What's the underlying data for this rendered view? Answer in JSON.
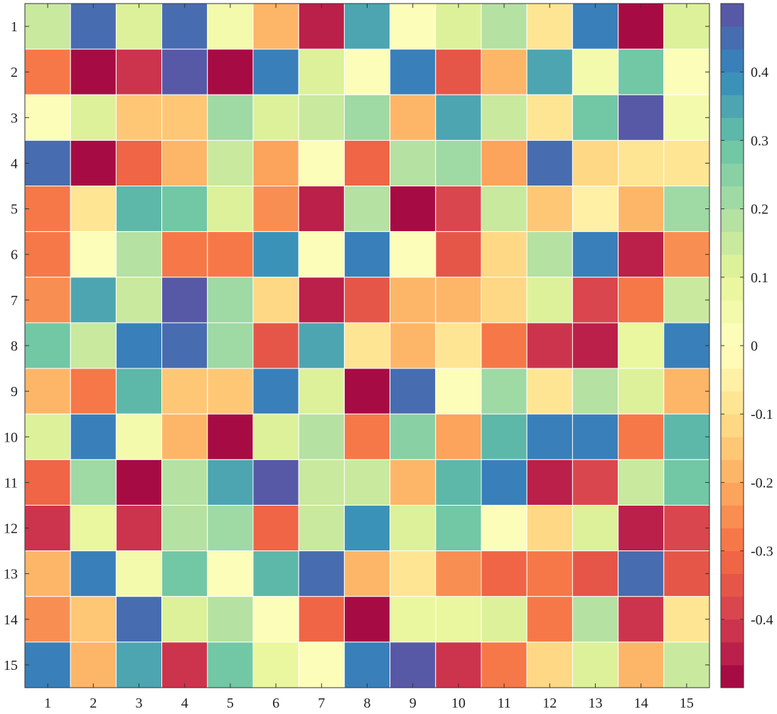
{
  "chart_data": {
    "type": "heatmap",
    "title": "",
    "xlabel": "",
    "ylabel": "",
    "x_categories": [
      "1",
      "2",
      "3",
      "4",
      "5",
      "6",
      "7",
      "8",
      "9",
      "10",
      "11",
      "12",
      "13",
      "14",
      "15"
    ],
    "y_categories": [
      "1",
      "2",
      "3",
      "4",
      "5",
      "6",
      "7",
      "8",
      "9",
      "10",
      "11",
      "12",
      "13",
      "14",
      "15"
    ],
    "values": [
      [
        0.14,
        0.45,
        0.1,
        0.44,
        0.04,
        -0.19,
        -0.45,
        0.35,
        0.02,
        0.1,
        0.17,
        -0.1,
        0.41,
        -0.48,
        0.13
      ],
      [
        -0.28,
        -0.48,
        -0.41,
        0.47,
        -0.48,
        0.41,
        0.1,
        0.02,
        0.4,
        -0.34,
        -0.2,
        0.35,
        0.04,
        0.27,
        0.03
      ],
      [
        0.02,
        0.12,
        -0.16,
        -0.15,
        0.23,
        0.1,
        0.16,
        0.22,
        -0.2,
        0.35,
        0.15,
        -0.08,
        0.28,
        0.47,
        0.06
      ],
      [
        0.44,
        -0.48,
        -0.32,
        -0.19,
        0.15,
        -0.22,
        0.01,
        -0.32,
        0.18,
        0.2,
        -0.23,
        0.44,
        -0.13,
        -0.07,
        -0.09
      ],
      [
        -0.28,
        -0.08,
        0.31,
        0.28,
        0.1,
        -0.24,
        -0.44,
        0.18,
        -0.49,
        -0.38,
        0.15,
        -0.14,
        -0.06,
        -0.18,
        0.23
      ],
      [
        -0.3,
        0.03,
        0.19,
        -0.3,
        -0.27,
        0.38,
        0.03,
        0.41,
        0.03,
        -0.36,
        -0.11,
        0.17,
        0.43,
        -0.45,
        -0.25
      ],
      [
        -0.24,
        0.35,
        0.16,
        0.47,
        0.2,
        -0.13,
        -0.45,
        -0.35,
        -0.18,
        -0.19,
        -0.12,
        0.1,
        -0.39,
        -0.3,
        0.14
      ],
      [
        0.29,
        0.14,
        0.41,
        0.44,
        0.2,
        -0.35,
        0.35,
        -0.07,
        -0.17,
        -0.07,
        -0.29,
        -0.42,
        -0.44,
        0.08,
        0.4
      ],
      [
        -0.18,
        -0.27,
        0.31,
        -0.14,
        -0.16,
        0.43,
        0.1,
        -0.48,
        0.44,
        0.03,
        0.2,
        -0.08,
        0.17,
        0.11,
        -0.17
      ],
      [
        0.11,
        0.41,
        0.06,
        -0.18,
        -0.48,
        0.13,
        0.18,
        -0.29,
        0.25,
        -0.23,
        0.31,
        0.41,
        0.43,
        -0.27,
        0.31
      ],
      [
        -0.33,
        0.23,
        -0.48,
        0.17,
        0.36,
        0.47,
        0.14,
        0.15,
        -0.19,
        0.31,
        0.43,
        -0.45,
        -0.38,
        0.15,
        0.28
      ],
      [
        -0.42,
        0.09,
        -0.41,
        0.19,
        0.23,
        -0.32,
        0.14,
        0.38,
        0.13,
        0.27,
        0.03,
        -0.11,
        0.13,
        -0.45,
        -0.38
      ],
      [
        -0.2,
        0.41,
        0.04,
        0.29,
        0.03,
        0.31,
        0.44,
        -0.17,
        -0.1,
        -0.24,
        -0.33,
        -0.28,
        -0.36,
        0.44,
        -0.34
      ],
      [
        -0.26,
        -0.14,
        0.44,
        0.1,
        0.18,
        0.02,
        -0.31,
        -0.49,
        0.09,
        0.09,
        0.11,
        -0.27,
        0.18,
        -0.41,
        -0.08
      ],
      [
        0.41,
        -0.17,
        0.36,
        -0.4,
        0.28,
        0.08,
        0.02,
        0.41,
        0.47,
        -0.41,
        -0.29,
        -0.13,
        0.12,
        -0.17,
        0.16
      ]
    ],
    "zlim": [
      -0.5,
      0.5
    ],
    "colorbar": {
      "ticks": [
        0.4,
        0.3,
        0.2,
        0.1,
        0,
        -0.1,
        -0.2,
        -0.3,
        -0.4
      ],
      "tick_labels": [
        "0.4",
        "0.3",
        "0.2",
        "0.1",
        "0",
        "-0.1",
        "-0.2",
        "-0.3",
        "-0.4"
      ],
      "levels": 30
    },
    "colormap": [
      "#9e0142",
      "#d53e4f",
      "#f46d43",
      "#fdae61",
      "#fee08b",
      "#ffffbf",
      "#e6f598",
      "#abdda4",
      "#66c2a5",
      "#3288bd",
      "#5e4fa2"
    ],
    "grid": false,
    "legend": "colorbar-right"
  }
}
